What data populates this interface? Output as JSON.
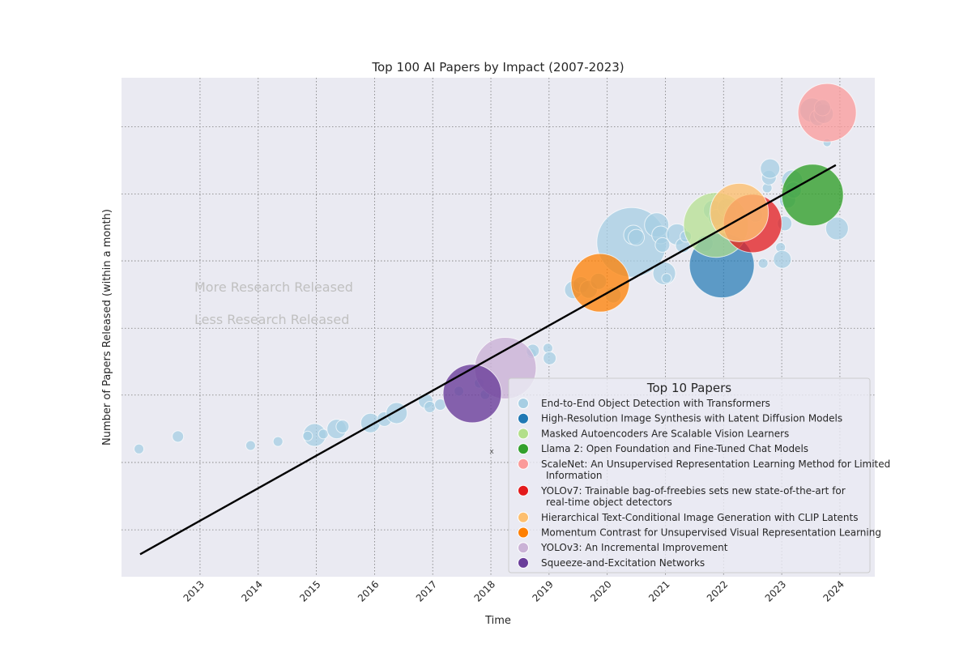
{
  "chart_data": {
    "type": "scatter",
    "title": "Top 100 AI Papers by Impact (2007-2023)",
    "xlabel": "Time",
    "ylabel": "Number of Papers Released (within a month)",
    "xlim": [
      2011.65,
      2024.6
    ],
    "ylim": [
      0,
      1
    ],
    "x_ticks": [
      2013,
      2014,
      2015,
      2016,
      2017,
      2018,
      2019,
      2020,
      2021,
      2022,
      2023,
      2024
    ],
    "y_grid": [
      0.094,
      0.229,
      0.364,
      0.498,
      0.633,
      0.767,
      0.902
    ],
    "grid": true,
    "annotations": [
      "More Research Released",
      "Less Research Released"
    ],
    "x_marker": "x",
    "trend_line": {
      "x": [
        2011.97,
        2023.93
      ],
      "y": [
        0.045,
        0.825
      ]
    },
    "legend": {
      "title": "Top 10 Papers",
      "position": "lower-right",
      "entries": [
        {
          "label": "End-to-End Object Detection with Transformers",
          "color": "#a6cee3"
        },
        {
          "label": "High-Resolution Image Synthesis with Latent Diffusion Models",
          "color": "#1f78b4"
        },
        {
          "label": "Masked Autoencoders Are Scalable Vision Learners",
          "color": "#b2df8a"
        },
        {
          "label": "Llama 2: Open Foundation and Fine-Tuned Chat Models",
          "color": "#33a02c"
        },
        {
          "label": "ScaleNet: An Unsupervised Representation Learning Method for Limited",
          "label2": "Information",
          "color": "#fb9a99"
        },
        {
          "label": "YOLOv7: Trainable bag-of-freebies sets new state-of-the-art for",
          "label2": "real-time object detectors",
          "color": "#e31a1c"
        },
        {
          "label": "Hierarchical Text-Conditional Image Generation with CLIP Latents",
          "color": "#fdbf6f"
        },
        {
          "label": "Momentum Contrast for Unsupervised Visual Representation Learning",
          "color": "#ff7f00"
        },
        {
          "label": "YOLOv3: An Incremental Improvement",
          "color": "#cab2d6"
        },
        {
          "label": "Squeeze-and-Excitation Networks",
          "color": "#6a3d9a"
        }
      ]
    },
    "series": [
      {
        "name": "End-to-End Object Detection with Transformers",
        "color": "#a6cee3",
        "alpha": 0.75,
        "points": [
          [
            2011.95,
            0.256,
            6
          ],
          [
            2012.62,
            0.281,
            7
          ],
          [
            2013.87,
            0.263,
            6
          ],
          [
            2014.34,
            0.271,
            6
          ],
          [
            2014.97,
            0.284,
            14
          ],
          [
            2014.85,
            0.282,
            6
          ],
          [
            2015.12,
            0.286,
            6
          ],
          [
            2015.35,
            0.296,
            12
          ],
          [
            2015.45,
            0.301,
            8
          ],
          [
            2015.93,
            0.308,
            12
          ],
          [
            2016.17,
            0.316,
            9
          ],
          [
            2016.38,
            0.328,
            13
          ],
          [
            2016.88,
            0.352,
            9
          ],
          [
            2016.95,
            0.34,
            7
          ],
          [
            2017.13,
            0.345,
            7
          ],
          [
            2017.45,
            0.372,
            6
          ],
          [
            2017.8,
            0.388,
            6
          ],
          [
            2017.9,
            0.365,
            6
          ],
          [
            2018.7,
            0.447,
            6
          ],
          [
            2018.72,
            0.453,
            8
          ],
          [
            2018.98,
            0.458,
            6
          ],
          [
            2019.01,
            0.438,
            8
          ],
          [
            2019.42,
            0.575,
            11
          ],
          [
            2019.55,
            0.585,
            10
          ],
          [
            2019.68,
            0.576,
            11
          ],
          [
            2019.85,
            0.592,
            10
          ],
          [
            2020.1,
            0.565,
            10
          ],
          [
            2020.42,
            0.67,
            43
          ],
          [
            2020.45,
            0.685,
            12
          ],
          [
            2020.5,
            0.68,
            10
          ],
          [
            2020.85,
            0.705,
            15
          ],
          [
            2020.92,
            0.685,
            11
          ],
          [
            2020.95,
            0.665,
            9
          ],
          [
            2020.98,
            0.608,
            14
          ],
          [
            2021.02,
            0.598,
            6
          ],
          [
            2021.2,
            0.686,
            13
          ],
          [
            2021.3,
            0.664,
            9
          ],
          [
            2021.35,
            0.682,
            7
          ],
          [
            2021.68,
            0.668,
            10
          ],
          [
            2021.82,
            0.735,
            12
          ],
          [
            2021.88,
            0.72,
            10
          ],
          [
            2022.05,
            0.74,
            11
          ],
          [
            2022.12,
            0.73,
            8
          ],
          [
            2022.55,
            0.725,
            9
          ],
          [
            2022.68,
            0.628,
            6
          ],
          [
            2022.75,
            0.779,
            6
          ],
          [
            2022.78,
            0.8,
            9
          ],
          [
            2022.8,
            0.818,
            12
          ],
          [
            2022.98,
            0.66,
            6
          ],
          [
            2023.01,
            0.636,
            11
          ],
          [
            2023.05,
            0.708,
            9
          ],
          [
            2023.1,
            0.755,
            10
          ],
          [
            2023.18,
            0.794,
            13
          ],
          [
            2023.2,
            0.775,
            10
          ],
          [
            2023.52,
            0.935,
            15
          ],
          [
            2023.62,
            0.92,
            10
          ],
          [
            2023.72,
            0.928,
            12
          ],
          [
            2023.78,
            0.87,
            5
          ],
          [
            2023.95,
            0.698,
            14
          ],
          [
            2023.7,
            0.94,
            10
          ]
        ]
      },
      {
        "name": "High-Resolution Image Synthesis with Latent Diffusion Models",
        "color": "#1f78b4",
        "alpha": 0.7,
        "points": [
          [
            2021.97,
            0.624,
            40
          ]
        ]
      },
      {
        "name": "Masked Autoencoders Are Scalable Vision Learners",
        "color": "#b2df8a",
        "alpha": 0.7,
        "points": [
          [
            2021.87,
            0.705,
            40
          ]
        ]
      },
      {
        "name": "Llama 2: Open Foundation and Fine-Tuned Chat Models",
        "color": "#33a02c",
        "alpha": 0.8,
        "points": [
          [
            2023.53,
            0.765,
            38
          ]
        ]
      },
      {
        "name": "ScaleNet: An Unsupervised Representation Learning Method for Limited Information",
        "color": "#fb9a99",
        "alpha": 0.75,
        "points": [
          [
            2023.78,
            0.93,
            36
          ]
        ]
      },
      {
        "name": "YOLOv7: Trainable bag-of-freebies sets new state-of-the-art for real-time object detectors",
        "color": "#e31a1c",
        "alpha": 0.75,
        "points": [
          [
            2022.5,
            0.708,
            36
          ]
        ]
      },
      {
        "name": "Hierarchical Text-Conditional Image Generation with CLIP Latents",
        "color": "#fdbf6f",
        "alpha": 0.8,
        "points": [
          [
            2022.27,
            0.73,
            36
          ]
        ]
      },
      {
        "name": "Momentum Contrast for Unsupervised Visual Representation Learning",
        "color": "#ff7f00",
        "alpha": 0.75,
        "points": [
          [
            2019.88,
            0.589,
            36
          ]
        ]
      },
      {
        "name": "YOLOv3: An Incremental Improvement",
        "color": "#cab2d6",
        "alpha": 0.8,
        "points": [
          [
            2018.25,
            0.418,
            38
          ]
        ]
      },
      {
        "name": "Squeeze-and-Excitation Networks",
        "color": "#6a3d9a",
        "alpha": 0.8,
        "points": [
          [
            2017.68,
            0.367,
            36
          ]
        ]
      }
    ]
  }
}
